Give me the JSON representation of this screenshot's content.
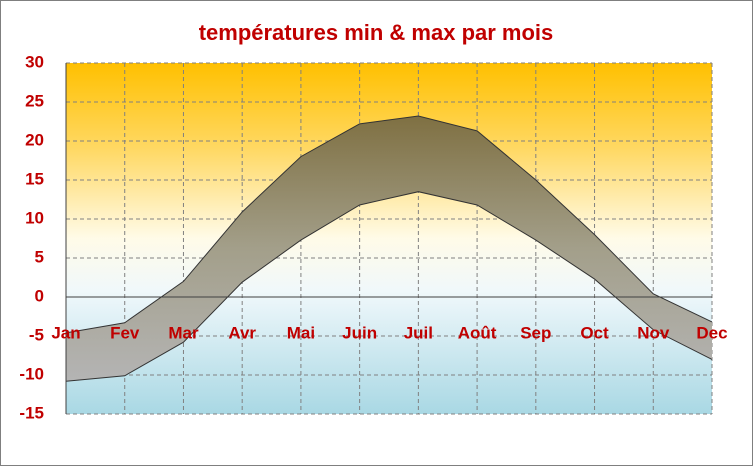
{
  "chart_data": {
    "type": "range-area",
    "title": "températures min & max par mois",
    "categories": [
      "Jan",
      "Fev",
      "Mar",
      "Avr",
      "Mai",
      "Juin",
      "Juil",
      "Août",
      "Sep",
      "Oct",
      "Nov",
      "Dec"
    ],
    "series": [
      {
        "name": "max",
        "color": "#333333",
        "values": [
          -4.6,
          -3.3,
          2,
          10.9,
          18,
          22.2,
          23.2,
          21.3,
          15,
          8,
          0.4,
          -3.2
        ]
      },
      {
        "name": "min",
        "color": "#333333",
        "values": [
          -10.8,
          -10.1,
          -5.8,
          1.9,
          7.3,
          11.8,
          13.5,
          11.8,
          7.3,
          2.3,
          -4.2,
          -8
        ]
      }
    ],
    "ylim": [
      -15,
      30
    ],
    "yticks": [
      -15,
      -10,
      -5,
      0,
      5,
      10,
      15,
      20,
      25,
      30
    ],
    "grid": true
  }
}
